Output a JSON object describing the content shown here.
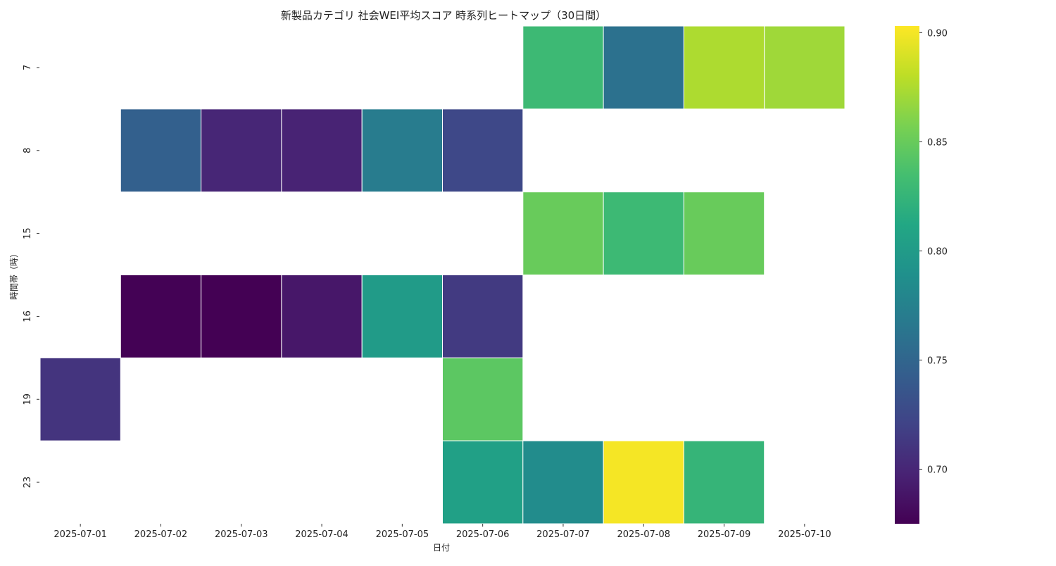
{
  "chart_data": {
    "type": "heatmap",
    "title": "新製品カテゴリ 社会WEI平均スコア 時系列ヒートマップ（30日間）",
    "xlabel": "日付",
    "ylabel": "時間帯（時）",
    "x": [
      "2025-07-01",
      "2025-07-02",
      "2025-07-03",
      "2025-07-04",
      "2025-07-05",
      "2025-07-06",
      "2025-07-07",
      "2025-07-08",
      "2025-07-09",
      "2025-07-10"
    ],
    "y": [
      "7",
      "8",
      "15",
      "16",
      "19",
      "23"
    ],
    "values": [
      [
        null,
        null,
        null,
        null,
        null,
        null,
        0.83,
        0.76,
        0.875,
        0.87
      ],
      [
        null,
        0.745,
        0.7,
        0.698,
        0.77,
        0.725,
        null,
        null,
        null,
        null
      ],
      [
        null,
        null,
        null,
        null,
        null,
        null,
        0.85,
        0.83,
        0.85,
        null
      ],
      [
        null,
        0.676,
        0.675,
        0.69,
        0.8,
        0.714,
        null,
        null,
        null,
        null
      ],
      [
        0.71,
        null,
        null,
        null,
        null,
        0.845,
        null,
        null,
        null,
        null
      ],
      [
        null,
        null,
        null,
        null,
        null,
        0.805,
        0.785,
        0.9,
        0.825,
        null
      ]
    ],
    "colorscale": "viridis",
    "colorbar": {
      "range": [
        0.675,
        0.903
      ],
      "ticks": [
        0.7,
        0.75,
        0.8,
        0.85,
        0.9
      ],
      "tick_labels": [
        "0.70",
        "0.75",
        "0.80",
        "0.85",
        "0.90"
      ]
    }
  }
}
